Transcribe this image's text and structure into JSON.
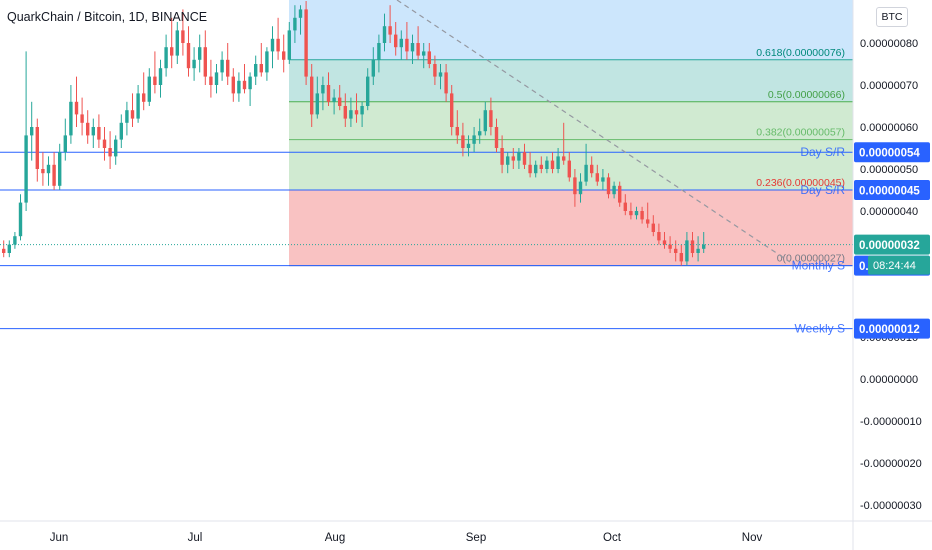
{
  "header": {
    "title": "QuarkChain / Bitcoin, 1D, BINANCE",
    "currency": "BTC"
  },
  "colors": {
    "up": "#26a69a",
    "down": "#ef5350",
    "fib_blue_zone": "#bbdefb",
    "fib_teal_zone": "#b2dfdb",
    "fib_green_zone": "#c8e6c9",
    "fib_red_zone": "#f8bbbb",
    "hline": "#2962ff",
    "label_bg": "#2962ff",
    "price_label_bg": "#26a69a"
  },
  "chart_data": {
    "type": "candlestick",
    "symbol": "QuarkChain / Bitcoin",
    "interval": "1D",
    "exchange": "BINANCE",
    "x_ticks": [
      "Jun",
      "Jul",
      "Aug",
      "Sep",
      "Oct",
      "Nov"
    ],
    "y_ticks": [
      "0.00000080",
      "0.00000070",
      "0.00000060",
      "0.00000050",
      "0.00000040",
      "0.00000010",
      "0.00000000",
      "-0.00000010",
      "-0.00000020",
      "-0.00000030"
    ],
    "ylim": [
      -3.2e-07,
      8.9e-07
    ],
    "horizontal_lines": [
      {
        "label": "Day S/R",
        "value": "0.00000054"
      },
      {
        "label": "Day S/R",
        "value": "0.00000045"
      },
      {
        "label": "Monthly S",
        "value": "0.00000027"
      },
      {
        "label": "Weekly S",
        "value": "0.00000012"
      }
    ],
    "fib_levels": [
      {
        "label": "0.618(0.00000076)",
        "value": 7.6e-07
      },
      {
        "label": "0.5(0.00000066)",
        "value": 6.6e-07
      },
      {
        "label": "0.382(0.00000057)",
        "value": 5.7e-07
      },
      {
        "label": "0.236(0.00000045)",
        "value": 4.5e-07
      },
      {
        "label": "0(0.00000027)",
        "value": 2.7e-07
      }
    ],
    "last_price": "0.00000032",
    "countdown": "08:24:44",
    "candles": [
      {
        "o": 0.31,
        "h": 0.33,
        "l": 0.29,
        "c": 0.3
      },
      {
        "o": 0.3,
        "h": 0.33,
        "l": 0.29,
        "c": 0.32
      },
      {
        "o": 0.32,
        "h": 0.35,
        "l": 0.31,
        "c": 0.34
      },
      {
        "o": 0.34,
        "h": 0.44,
        "l": 0.33,
        "c": 0.42
      },
      {
        "o": 0.42,
        "h": 0.78,
        "l": 0.4,
        "c": 0.58
      },
      {
        "o": 0.58,
        "h": 0.66,
        "l": 0.52,
        "c": 0.6
      },
      {
        "o": 0.6,
        "h": 0.62,
        "l": 0.47,
        "c": 0.5
      },
      {
        "o": 0.5,
        "h": 0.54,
        "l": 0.46,
        "c": 0.49
      },
      {
        "o": 0.49,
        "h": 0.53,
        "l": 0.46,
        "c": 0.51
      },
      {
        "o": 0.51,
        "h": 0.54,
        "l": 0.45,
        "c": 0.46
      },
      {
        "o": 0.46,
        "h": 0.56,
        "l": 0.45,
        "c": 0.54
      },
      {
        "o": 0.54,
        "h": 0.62,
        "l": 0.52,
        "c": 0.58
      },
      {
        "o": 0.58,
        "h": 0.7,
        "l": 0.56,
        "c": 0.66
      },
      {
        "o": 0.66,
        "h": 0.72,
        "l": 0.6,
        "c": 0.63
      },
      {
        "o": 0.63,
        "h": 0.67,
        "l": 0.58,
        "c": 0.61
      },
      {
        "o": 0.61,
        "h": 0.64,
        "l": 0.56,
        "c": 0.58
      },
      {
        "o": 0.58,
        "h": 0.62,
        "l": 0.55,
        "c": 0.6
      },
      {
        "o": 0.6,
        "h": 0.63,
        "l": 0.55,
        "c": 0.57
      },
      {
        "o": 0.57,
        "h": 0.6,
        "l": 0.52,
        "c": 0.55
      },
      {
        "o": 0.55,
        "h": 0.59,
        "l": 0.5,
        "c": 0.53
      },
      {
        "o": 0.53,
        "h": 0.58,
        "l": 0.51,
        "c": 0.57
      },
      {
        "o": 0.57,
        "h": 0.63,
        "l": 0.55,
        "c": 0.61
      },
      {
        "o": 0.61,
        "h": 0.66,
        "l": 0.58,
        "c": 0.64
      },
      {
        "o": 0.64,
        "h": 0.68,
        "l": 0.6,
        "c": 0.62
      },
      {
        "o": 0.62,
        "h": 0.7,
        "l": 0.61,
        "c": 0.68
      },
      {
        "o": 0.68,
        "h": 0.73,
        "l": 0.64,
        "c": 0.66
      },
      {
        "o": 0.66,
        "h": 0.74,
        "l": 0.65,
        "c": 0.72
      },
      {
        "o": 0.72,
        "h": 0.78,
        "l": 0.68,
        "c": 0.7
      },
      {
        "o": 0.7,
        "h": 0.76,
        "l": 0.67,
        "c": 0.74
      },
      {
        "o": 0.74,
        "h": 0.82,
        "l": 0.72,
        "c": 0.79
      },
      {
        "o": 0.79,
        "h": 0.86,
        "l": 0.74,
        "c": 0.77
      },
      {
        "o": 0.77,
        "h": 0.85,
        "l": 0.75,
        "c": 0.83
      },
      {
        "o": 0.83,
        "h": 0.88,
        "l": 0.77,
        "c": 0.8
      },
      {
        "o": 0.8,
        "h": 0.84,
        "l": 0.72,
        "c": 0.74
      },
      {
        "o": 0.74,
        "h": 0.79,
        "l": 0.71,
        "c": 0.76
      },
      {
        "o": 0.76,
        "h": 0.82,
        "l": 0.73,
        "c": 0.79
      },
      {
        "o": 0.79,
        "h": 0.83,
        "l": 0.7,
        "c": 0.72
      },
      {
        "o": 0.72,
        "h": 0.76,
        "l": 0.67,
        "c": 0.7
      },
      {
        "o": 0.7,
        "h": 0.75,
        "l": 0.68,
        "c": 0.73
      },
      {
        "o": 0.73,
        "h": 0.78,
        "l": 0.71,
        "c": 0.76
      },
      {
        "o": 0.76,
        "h": 0.8,
        "l": 0.7,
        "c": 0.72
      },
      {
        "o": 0.72,
        "h": 0.74,
        "l": 0.66,
        "c": 0.68
      },
      {
        "o": 0.68,
        "h": 0.73,
        "l": 0.66,
        "c": 0.71
      },
      {
        "o": 0.71,
        "h": 0.75,
        "l": 0.68,
        "c": 0.69
      },
      {
        "o": 0.69,
        "h": 0.73,
        "l": 0.65,
        "c": 0.72
      },
      {
        "o": 0.72,
        "h": 0.77,
        "l": 0.7,
        "c": 0.75
      },
      {
        "o": 0.75,
        "h": 0.8,
        "l": 0.72,
        "c": 0.73
      },
      {
        "o": 0.73,
        "h": 0.79,
        "l": 0.71,
        "c": 0.78
      },
      {
        "o": 0.78,
        "h": 0.84,
        "l": 0.74,
        "c": 0.81
      },
      {
        "o": 0.81,
        "h": 0.86,
        "l": 0.76,
        "c": 0.78
      },
      {
        "o": 0.78,
        "h": 0.82,
        "l": 0.73,
        "c": 0.76
      },
      {
        "o": 0.76,
        "h": 0.85,
        "l": 0.75,
        "c": 0.83
      },
      {
        "o": 0.83,
        "h": 0.89,
        "l": 0.8,
        "c": 0.86
      },
      {
        "o": 0.86,
        "h": 0.89,
        "l": 0.82,
        "c": 0.88
      },
      {
        "o": 0.88,
        "h": 0.9,
        "l": 0.7,
        "c": 0.72
      },
      {
        "o": 0.72,
        "h": 0.75,
        "l": 0.6,
        "c": 0.63
      },
      {
        "o": 0.63,
        "h": 0.72,
        "l": 0.62,
        "c": 0.68
      },
      {
        "o": 0.68,
        "h": 0.72,
        "l": 0.64,
        "c": 0.7
      },
      {
        "o": 0.7,
        "h": 0.73,
        "l": 0.65,
        "c": 0.66
      },
      {
        "o": 0.66,
        "h": 0.69,
        "l": 0.63,
        "c": 0.67
      },
      {
        "o": 0.67,
        "h": 0.7,
        "l": 0.64,
        "c": 0.65
      },
      {
        "o": 0.65,
        "h": 0.68,
        "l": 0.6,
        "c": 0.62
      },
      {
        "o": 0.62,
        "h": 0.67,
        "l": 0.6,
        "c": 0.64
      },
      {
        "o": 0.64,
        "h": 0.68,
        "l": 0.61,
        "c": 0.63
      },
      {
        "o": 0.63,
        "h": 0.66,
        "l": 0.6,
        "c": 0.65
      },
      {
        "o": 0.65,
        "h": 0.74,
        "l": 0.64,
        "c": 0.72
      },
      {
        "o": 0.72,
        "h": 0.79,
        "l": 0.7,
        "c": 0.76
      },
      {
        "o": 0.76,
        "h": 0.82,
        "l": 0.73,
        "c": 0.8
      },
      {
        "o": 0.8,
        "h": 0.87,
        "l": 0.78,
        "c": 0.84
      },
      {
        "o": 0.84,
        "h": 0.89,
        "l": 0.8,
        "c": 0.82
      },
      {
        "o": 0.82,
        "h": 0.85,
        "l": 0.77,
        "c": 0.79
      },
      {
        "o": 0.79,
        "h": 0.83,
        "l": 0.76,
        "c": 0.81
      },
      {
        "o": 0.81,
        "h": 0.85,
        "l": 0.76,
        "c": 0.78
      },
      {
        "o": 0.78,
        "h": 0.82,
        "l": 0.75,
        "c": 0.8
      },
      {
        "o": 0.8,
        "h": 0.84,
        "l": 0.76,
        "c": 0.77
      },
      {
        "o": 0.77,
        "h": 0.8,
        "l": 0.74,
        "c": 0.78
      },
      {
        "o": 0.78,
        "h": 0.8,
        "l": 0.74,
        "c": 0.75
      },
      {
        "o": 0.75,
        "h": 0.77,
        "l": 0.7,
        "c": 0.72
      },
      {
        "o": 0.72,
        "h": 0.75,
        "l": 0.69,
        "c": 0.73
      },
      {
        "o": 0.73,
        "h": 0.75,
        "l": 0.66,
        "c": 0.68
      },
      {
        "o": 0.68,
        "h": 0.7,
        "l": 0.58,
        "c": 0.6
      },
      {
        "o": 0.6,
        "h": 0.64,
        "l": 0.56,
        "c": 0.58
      },
      {
        "o": 0.58,
        "h": 0.61,
        "l": 0.53,
        "c": 0.55
      },
      {
        "o": 0.55,
        "h": 0.58,
        "l": 0.53,
        "c": 0.56
      },
      {
        "o": 0.56,
        "h": 0.6,
        "l": 0.54,
        "c": 0.58
      },
      {
        "o": 0.58,
        "h": 0.62,
        "l": 0.56,
        "c": 0.59
      },
      {
        "o": 0.59,
        "h": 0.66,
        "l": 0.58,
        "c": 0.64
      },
      {
        "o": 0.64,
        "h": 0.67,
        "l": 0.58,
        "c": 0.6
      },
      {
        "o": 0.6,
        "h": 0.62,
        "l": 0.54,
        "c": 0.55
      },
      {
        "o": 0.55,
        "h": 0.58,
        "l": 0.49,
        "c": 0.51
      },
      {
        "o": 0.51,
        "h": 0.54,
        "l": 0.49,
        "c": 0.53
      },
      {
        "o": 0.53,
        "h": 0.55,
        "l": 0.5,
        "c": 0.52
      },
      {
        "o": 0.52,
        "h": 0.55,
        "l": 0.5,
        "c": 0.54
      },
      {
        "o": 0.54,
        "h": 0.56,
        "l": 0.5,
        "c": 0.51
      },
      {
        "o": 0.51,
        "h": 0.54,
        "l": 0.48,
        "c": 0.49
      },
      {
        "o": 0.49,
        "h": 0.52,
        "l": 0.48,
        "c": 0.51
      },
      {
        "o": 0.51,
        "h": 0.53,
        "l": 0.49,
        "c": 0.5
      },
      {
        "o": 0.5,
        "h": 0.53,
        "l": 0.49,
        "c": 0.52
      },
      {
        "o": 0.52,
        "h": 0.54,
        "l": 0.49,
        "c": 0.5
      },
      {
        "o": 0.5,
        "h": 0.55,
        "l": 0.49,
        "c": 0.53
      },
      {
        "o": 0.53,
        "h": 0.61,
        "l": 0.51,
        "c": 0.52
      },
      {
        "o": 0.52,
        "h": 0.54,
        "l": 0.47,
        "c": 0.48
      },
      {
        "o": 0.48,
        "h": 0.5,
        "l": 0.41,
        "c": 0.44
      },
      {
        "o": 0.44,
        "h": 0.49,
        "l": 0.42,
        "c": 0.47
      },
      {
        "o": 0.47,
        "h": 0.56,
        "l": 0.46,
        "c": 0.51
      },
      {
        "o": 0.51,
        "h": 0.53,
        "l": 0.48,
        "c": 0.49
      },
      {
        "o": 0.49,
        "h": 0.51,
        "l": 0.46,
        "c": 0.47
      },
      {
        "o": 0.47,
        "h": 0.5,
        "l": 0.45,
        "c": 0.48
      },
      {
        "o": 0.48,
        "h": 0.49,
        "l": 0.43,
        "c": 0.44
      },
      {
        "o": 0.44,
        "h": 0.47,
        "l": 0.43,
        "c": 0.46
      },
      {
        "o": 0.46,
        "h": 0.47,
        "l": 0.41,
        "c": 0.42
      },
      {
        "o": 0.42,
        "h": 0.44,
        "l": 0.39,
        "c": 0.4
      },
      {
        "o": 0.4,
        "h": 0.42,
        "l": 0.38,
        "c": 0.39
      },
      {
        "o": 0.39,
        "h": 0.41,
        "l": 0.38,
        "c": 0.4
      },
      {
        "o": 0.4,
        "h": 0.41,
        "l": 0.37,
        "c": 0.38
      },
      {
        "o": 0.38,
        "h": 0.42,
        "l": 0.36,
        "c": 0.37
      },
      {
        "o": 0.37,
        "h": 0.39,
        "l": 0.34,
        "c": 0.35
      },
      {
        "o": 0.35,
        "h": 0.37,
        "l": 0.32,
        "c": 0.33
      },
      {
        "o": 0.33,
        "h": 0.35,
        "l": 0.31,
        "c": 0.32
      },
      {
        "o": 0.32,
        "h": 0.34,
        "l": 0.3,
        "c": 0.31
      },
      {
        "o": 0.31,
        "h": 0.33,
        "l": 0.28,
        "c": 0.3
      },
      {
        "o": 0.3,
        "h": 0.32,
        "l": 0.27,
        "c": 0.28
      },
      {
        "o": 0.28,
        "h": 0.35,
        "l": 0.27,
        "c": 0.33
      },
      {
        "o": 0.33,
        "h": 0.35,
        "l": 0.29,
        "c": 0.3
      },
      {
        "o": 0.3,
        "h": 0.34,
        "l": 0.28,
        "c": 0.31
      },
      {
        "o": 0.31,
        "h": 0.35,
        "l": 0.3,
        "c": 0.32
      }
    ]
  }
}
